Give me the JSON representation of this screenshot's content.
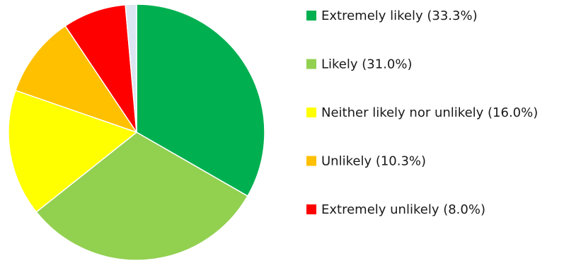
{
  "chart_data": {
    "type": "pie",
    "categories": [
      "Extremely likely",
      "Likely",
      "Neither likely nor unlikely",
      "Unlikely",
      "Extremely unlikely",
      ""
    ],
    "values": [
      33.3,
      31.0,
      16.0,
      10.3,
      8.0,
      1.4
    ],
    "colors": [
      "#00b050",
      "#92d050",
      "#ffff00",
      "#ffc000",
      "#ff0000",
      "#dce6f2"
    ],
    "legend": {
      "placement": "right",
      "items": [
        {
          "label": "Extremely likely (33.3%)",
          "color": "#00b050"
        },
        {
          "label": "Likely (31.0%)",
          "color": "#92d050"
        },
        {
          "label": "Neither likely nor unlikely (16.0%)",
          "color": "#ffff00"
        },
        {
          "label": "Unlikely (10.3%)",
          "color": "#ffc000"
        },
        {
          "label": "Extremely unlikely (8.0%)",
          "color": "#ff0000"
        }
      ]
    },
    "start_angle": "12 o'clock",
    "direction": "clockwise"
  }
}
